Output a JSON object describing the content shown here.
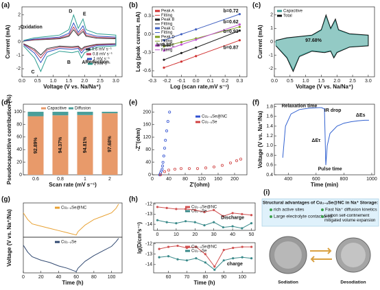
{
  "chart_data": [
    {
      "type": "line",
      "panel": "(a)",
      "xlabel": "Voltage (V vs. Na/Na⁺)",
      "ylabel": "Current (mA)",
      "xlim": [
        0,
        3.2
      ],
      "ylim": [
        -2.6,
        2.6
      ],
      "xticks": [
        {
          "value": 0,
          "label": "0.0"
        },
        0.5,
        {
          "value": 1,
          "label": "1.0"
        },
        1.5,
        {
          "value": 2,
          "label": "2.0"
        },
        2.5,
        {
          "value": 3,
          "label": "3.0"
        }
      ],
      "yticks": [
        -2,
        -1,
        0,
        1,
        2
      ],
      "x": [
        0.05,
        0.4,
        0.8,
        1.2,
        1.5,
        1.65,
        1.8,
        1.95,
        2.05,
        2.4,
        3.0,
        3.0,
        2.4,
        2.0,
        1.9,
        1.8,
        1.6,
        1.2,
        0.8,
        0.6,
        0.4,
        0.05
      ],
      "series": [
        {
          "name": "0.6 mV s⁻¹",
          "color": "#333333",
          "values": [
            0.05,
            0.14,
            0.18,
            0.23,
            0.41,
            0.9,
            0.45,
            0.77,
            0.41,
            0.27,
            0.23,
            -0.14,
            -0.18,
            -0.36,
            -0.54,
            -0.32,
            -0.36,
            -0.32,
            -0.5,
            -0.99,
            -0.54,
            -0.14
          ]
        },
        {
          "name": "0.8 mV s⁻¹",
          "color": "#c04060",
          "values": [
            0.06,
            0.17,
            0.22,
            0.28,
            0.5,
            1.1,
            0.55,
            0.94,
            0.5,
            0.33,
            0.28,
            -0.17,
            -0.22,
            -0.44,
            -0.66,
            -0.39,
            -0.44,
            -0.39,
            -0.61,
            -1.21,
            -0.66,
            -0.17
          ]
        },
        {
          "name": "1 mV s⁻¹",
          "color": "#3050c0",
          "values": [
            0.07,
            0.21,
            0.28,
            0.35,
            0.63,
            1.4,
            0.7,
            1.19,
            0.63,
            0.42,
            0.35,
            -0.21,
            -0.28,
            -0.56,
            -0.84,
            -0.49,
            -0.56,
            -0.49,
            -0.77,
            -1.54,
            -0.84,
            -0.21
          ]
        },
        {
          "name": "2 mV s⁻¹",
          "color": "#2a9d8f",
          "values": [
            0.1,
            0.3,
            0.4,
            0.5,
            0.9,
            2.0,
            1.0,
            1.7,
            0.9,
            0.6,
            0.5,
            -0.3,
            -0.4,
            -0.8,
            -1.2,
            -0.7,
            -0.8,
            -0.7,
            -1.1,
            -2.2,
            -1.2,
            -0.3
          ]
        }
      ],
      "annotations": [
        {
          "text": "Oxidation"
        },
        {
          "text": "Reduction"
        },
        {
          "text": "A"
        },
        {
          "text": "B"
        },
        {
          "text": "C"
        },
        {
          "text": "D"
        },
        {
          "text": "E"
        }
      ]
    },
    {
      "type": "line",
      "panel": "(b)",
      "xlabel": "Log (scan rate,mV s⁻¹)",
      "ylabel": "Log (peak current, mA)",
      "xlim": [
        -0.3,
        0.35
      ],
      "ylim": [
        -0.7,
        0.45
      ],
      "xticks": [
        -0.3,
        -0.2,
        -0.1,
        {
          "value": 0,
          "label": "0.0"
        },
        0.1,
        0.2,
        0.3
      ],
      "yticks": [
        -0.6,
        -0.3,
        {
          "value": 0,
          "label": "0.0"
        },
        0.3
      ],
      "fit_name": "Fitting",
      "x": [
        -0.22,
        -0.1,
        0,
        0.3
      ],
      "series": [
        {
          "name": "Peak A",
          "color": "#d03030",
          "marker": true,
          "values": [
            -0.55,
            -0.45,
            -0.36,
            -0.1
          ]
        },
        {
          "name": "Peak B",
          "color": "#222222",
          "marker": true,
          "values": [
            -0.42,
            -0.31,
            -0.22,
            0.06
          ]
        },
        {
          "name": "Peak C",
          "color": "#4060c0",
          "marker": true,
          "values": [
            -0.1,
            0.0,
            0.08,
            0.33
          ]
        },
        {
          "name": "Peak D",
          "color": "#80a020",
          "marker": true,
          "values": [
            -0.2,
            -0.13,
            -0.07,
            0.12
          ]
        },
        {
          "name": "Peak E",
          "color": "#c050d0",
          "marker": true,
          "values": [
            -0.27,
            -0.17,
            -0.09,
            0.16
          ]
        }
      ],
      "annotations": [
        {
          "text": "b=0.72",
          "color": "#4060c0"
        },
        {
          "text": "b=0.62",
          "color": "#80a020"
        },
        {
          "text": "b=0.93",
          "color": "#222222"
        },
        {
          "text": "b=0.83",
          "color": "#c050d0"
        },
        {
          "text": "b=0.87",
          "color": "#d03030"
        }
      ]
    },
    {
      "type": "line",
      "panel": "(c)",
      "xlabel": "Voltage (V vs. Na/Na⁺)",
      "ylabel": "Current (mA)",
      "xlim": [
        0,
        3.2
      ],
      "ylim": [
        -2.6,
        2.6
      ],
      "xticks": [
        {
          "value": 0,
          "label": "0.0"
        },
        0.5,
        {
          "value": 1,
          "label": "1.0"
        },
        1.5,
        {
          "value": 2,
          "label": "2.0"
        },
        2.5,
        {
          "value": 3,
          "label": "3.0"
        }
      ],
      "yticks": [
        -2,
        -1,
        0,
        1,
        2
      ],
      "x": [
        0.05,
        0.4,
        0.8,
        1.2,
        1.5,
        1.65,
        1.8,
        1.95,
        2.05,
        2.4,
        3.0,
        3.0,
        2.4,
        2.0,
        1.9,
        1.8,
        1.6,
        1.2,
        0.8,
        0.6,
        0.4,
        0.05
      ],
      "series": [
        {
          "name": "Capacitive",
          "color": "#3a9e96",
          "filled": true,
          "values": [
            0.1,
            0.28,
            0.38,
            0.47,
            0.86,
            1.9,
            0.95,
            1.6,
            0.86,
            0.57,
            0.48,
            -0.28,
            -0.38,
            -0.76,
            -1.14,
            -0.66,
            -0.76,
            -0.66,
            -1.04,
            -2.1,
            -1.14,
            -0.28
          ]
        },
        {
          "name": "Total",
          "color": "#111111",
          "values": [
            0.1,
            0.3,
            0.4,
            0.5,
            0.9,
            2.0,
            1.0,
            1.7,
            0.9,
            0.6,
            0.5,
            -0.3,
            -0.4,
            -0.8,
            -1.2,
            -0.7,
            -0.8,
            -0.7,
            -1.1,
            -2.2,
            -1.2,
            -0.3
          ]
        }
      ],
      "annotations": [
        {
          "text": "97.68%"
        }
      ]
    },
    {
      "type": "bar",
      "panel": "(d)",
      "xlabel": "Scan rate (mV s⁻¹)",
      "ylabel": "Pseudocapacitive contribution (%)",
      "ylim": [
        0,
        112
      ],
      "yticks": [
        0,
        20,
        40,
        60,
        80,
        100
      ],
      "categories": [
        "0.6",
        "0.8",
        "1",
        "2"
      ],
      "series": [
        {
          "name": "Capacitive",
          "color": "#e89a6a",
          "values": [
            92.89,
            94.37,
            94.81,
            97.68
          ],
          "value_labels": [
            "92.89%",
            "94.37%",
            "94.81%",
            "97.68%"
          ]
        },
        {
          "name": "Diffusion",
          "color": "#4a9e9a",
          "values": [
            7.11,
            5.63,
            5.19,
            2.32
          ]
        }
      ]
    },
    {
      "type": "scatter",
      "panel": "(e)",
      "xlabel": "Z'(ohm)",
      "ylabel": "-Z''(ohm)",
      "xlim": [
        0,
        230
      ],
      "ylim": [
        0,
        225
      ],
      "xticks": [
        0,
        40,
        80,
        120,
        160,
        200
      ],
      "yticks": [
        0,
        40,
        80,
        120,
        160,
        200
      ],
      "series": [
        {
          "name": "Cu₂₋ₓSe@NC",
          "color": "#3050d0",
          "x": [
            18,
            20,
            22,
            24,
            25,
            26,
            28,
            30,
            32,
            35,
            38,
            42
          ],
          "values": [
            0,
            6,
            12,
            18,
            28,
            40,
            60,
            85,
            110,
            140,
            170,
            200
          ]
        },
        {
          "name": "Cu₂₋ₓSe",
          "color": "#d04040",
          "x": [
            20,
            30,
            40,
            55,
            70,
            90,
            110,
            130,
            150,
            170,
            190,
            205,
            215
          ],
          "values": [
            0,
            10,
            15,
            18,
            20,
            20,
            20,
            22,
            25,
            30,
            38,
            45,
            50
          ]
        }
      ]
    },
    {
      "type": "line",
      "panel": "(f)",
      "xlabel": "Time (min)",
      "ylabel": "Voltage (V vs. Na⁺/Na)",
      "xlim": [
        300,
        1020
      ],
      "ylim": [
        0.4,
        1.85
      ],
      "xticks": [
        400,
        600,
        800,
        1000
      ],
      "yticks": [
        0.4,
        0.6,
        0.8,
        {
          "value": 1,
          "label": "1.0"
        },
        1.2,
        1.4,
        1.6,
        1.8
      ],
      "series": [
        {
          "color": "#3060d0",
          "x": [
            360,
            380,
            420,
            480,
            550,
            620,
            640,
            660,
            670,
            680,
            700,
            750,
            800,
            850,
            900,
            950,
            980
          ],
          "values": [
            0.75,
            1.4,
            1.65,
            1.74,
            1.77,
            1.78,
            1.78,
            1.75,
            0.6,
            1.0,
            1.25,
            1.4,
            1.46,
            1.49,
            1.51,
            1.52,
            1.52
          ]
        }
      ],
      "annotations": [
        {
          "text": "Relaxation time"
        },
        {
          "text": "IR drop"
        },
        {
          "text": "ΔEτ"
        },
        {
          "text": "ΔEs"
        },
        {
          "text": "Pulse time"
        }
      ]
    },
    {
      "type": "line",
      "panel": "(g)",
      "ylabel": "Voltage (V vs. Na⁺/Na)",
      "xlim": [
        0,
        112
      ],
      "ylim": [
        0,
        3.1
      ],
      "x": [
        0,
        5,
        10,
        20,
        30,
        40,
        50,
        60,
        62,
        70,
        80,
        90,
        100,
        105,
        108
      ],
      "series": [
        {
          "name": "Cu₂₋ₓSe@NC",
          "color": "#e8a030",
          "values": [
            2.2,
            1.6,
            1.2,
            1.0,
            0.8,
            0.6,
            0.4,
            0.2,
            0.5,
            1.1,
            1.6,
            1.9,
            2.2,
            2.6,
            3.0
          ]
        }
      ]
    },
    {
      "type": "line",
      "xlabel": "Time (h)",
      "xlim": [
        0,
        112
      ],
      "ylim": [
        0,
        3.1
      ],
      "xticks": [
        0,
        20,
        40,
        60,
        80,
        100
      ],
      "x": [
        0,
        5,
        10,
        20,
        30,
        40,
        50,
        60,
        62,
        70,
        80,
        90,
        100,
        105,
        108
      ],
      "series": [
        {
          "name": "Cu₂₋ₓSe",
          "color": "#304870",
          "values": [
            2.4,
            1.8,
            1.4,
            1.1,
            0.9,
            0.6,
            0.4,
            0.1,
            0.4,
            1.0,
            1.5,
            1.9,
            2.3,
            2.7,
            3.0
          ]
        }
      ]
    },
    {
      "type": "line",
      "panel": "(h)",
      "ylabel": "lg(D/cm²s⁻¹)",
      "xlim": [
        -2,
        52
      ],
      "ylim": [
        -14.6,
        -11.9
      ],
      "xticks": [
        0,
        10,
        20,
        30,
        40,
        50
      ],
      "yticks": [
        -12,
        -13,
        -14
      ],
      "x": [
        0,
        5,
        10,
        15,
        20,
        25,
        30,
        35,
        40,
        45,
        50
      ],
      "series": [
        {
          "name": "Cu₂₋ₓSe@NC",
          "color": "#d05050",
          "marker": true,
          "values": [
            -12.3,
            -12.4,
            -12.5,
            -12.5,
            -12.6,
            -12.8,
            -12.6,
            -13.2,
            -12.9,
            -13.0,
            -13.1
          ]
        },
        {
          "name": "Cu₂₋ₓSe",
          "color": "#3a8a8a",
          "marker": true,
          "values": [
            -13.6,
            -13.8,
            -13.9,
            -13.7,
            -13.8,
            -14.1,
            -13.8,
            -14.3,
            -14.2,
            -14.4,
            -13.9
          ]
        }
      ],
      "annotations": [
        {
          "text": "Discharge"
        }
      ]
    },
    {
      "type": "line",
      "xlabel": "Time (h)",
      "xlim": [
        52,
        107
      ],
      "ylim": [
        -14.8,
        -11.9
      ],
      "xticks": [
        60,
        70,
        80,
        90,
        100
      ],
      "yticks": [
        -12,
        -13,
        -14
      ],
      "x": [
        55,
        60,
        65,
        70,
        75,
        80,
        85,
        90,
        95,
        100,
        105
      ],
      "series": [
        {
          "name": "Cu₂₋ₓSe@NC",
          "color": "#d05050",
          "marker": true,
          "values": [
            -12.5,
            -12.3,
            -12.2,
            -12.4,
            -12.3,
            -13.0,
            -14.2,
            -12.6,
            -12.4,
            -12.3,
            -12.3
          ]
        },
        {
          "name": "Cu₂₋ₓSe",
          "color": "#3a8a8a",
          "marker": true,
          "values": [
            -13.3,
            -13.2,
            -13.5,
            -13.6,
            -13.4,
            -13.8,
            -14.5,
            -13.6,
            -13.4,
            -13.3,
            -13.4
          ]
        }
      ],
      "annotations": [
        {
          "text": "charge"
        }
      ]
    }
  ],
  "illustration": {
    "panel": "(i)",
    "title": "Structural advantages of Cu₂₋ₓSe@NC in Na⁺ Storage:",
    "items": [
      "rich active sites",
      "Fast Na⁺ diffusion kinetics",
      "Large electrolyte contact area",
      "Carbon self-confinement mitigated volume expansion"
    ],
    "left": "Sodiation",
    "right": "Desodiation"
  }
}
